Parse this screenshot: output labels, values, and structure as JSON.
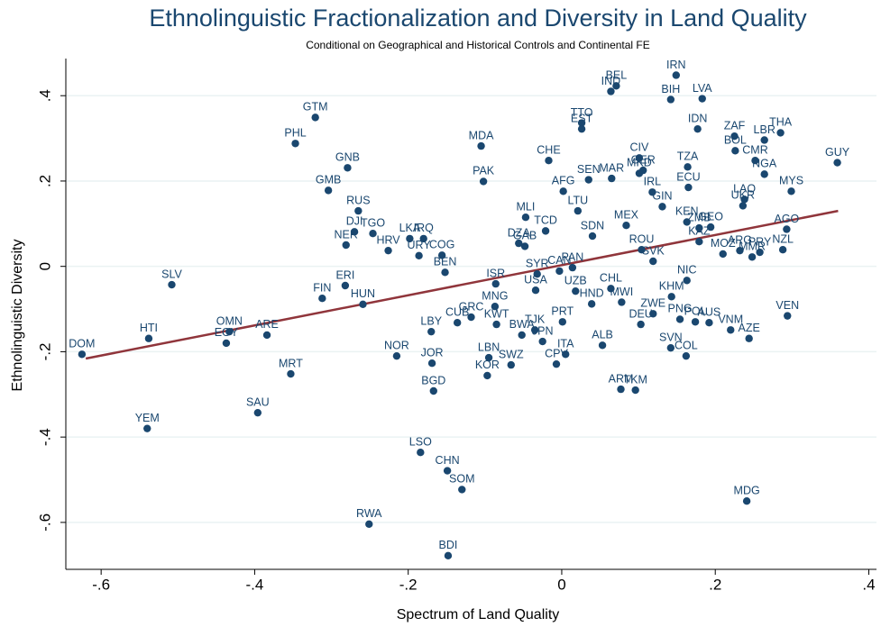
{
  "chart_data": {
    "type": "scatter",
    "title": "Ethnolinguistic Fractionalization and Diversity in Land Quality",
    "subtitle": "Conditional on Geographical and Historical Controls and Continental FE",
    "x_label": "Spectrum of Land Quality",
    "y_label": "Ethnolinguistic Diversity",
    "xlim": [
      -0.646,
      0.41
    ],
    "ylim": [
      -0.71,
      0.487
    ],
    "xticks": [
      {
        "value": -0.6,
        "label": "-.6"
      },
      {
        "value": -0.4,
        "label": "-.4"
      },
      {
        "value": -0.2,
        "label": "-.2"
      },
      0,
      {
        "value": 0.2,
        "label": ".2"
      },
      {
        "value": 0.4,
        "label": ".4"
      }
    ],
    "yticks": [
      {
        "value": -0.6,
        "label": "-.6"
      },
      {
        "value": -0.4,
        "label": "-.4"
      },
      {
        "value": -0.2,
        "label": "-.2"
      },
      0,
      {
        "value": 0.2,
        "label": ".2"
      },
      {
        "value": 0.4,
        "label": ".4"
      }
    ],
    "grid": true,
    "color": "#1a476f",
    "fit_color": "#90353b",
    "fit_line": {
      "x": [
        -0.62,
        0.36
      ],
      "y": [
        -0.216,
        0.13
      ]
    },
    "labels": [
      "DOM",
      "HTI",
      "YEM",
      "SLV",
      "OMN",
      "EGY",
      "ARE",
      "SAU",
      "MRT",
      "GTM",
      "PHL",
      "GMB",
      "GNB",
      "RUS",
      "DJI",
      "NER",
      "TGO",
      "HRV",
      "LKA",
      "URY",
      "IRQ",
      "COG",
      "BEN",
      "FIN",
      "ERI",
      "HUN",
      "NOR",
      "JOR",
      "BGD",
      "LBY",
      "CUB",
      "GRC",
      "KWT",
      "MNG",
      "ISR",
      "LBN",
      "KOR",
      "SWZ",
      "BWA",
      "TJK",
      "JPN",
      "ITA",
      "CPV",
      "LSO",
      "CHN",
      "SOM",
      "RWA",
      "BDI",
      "MDA",
      "PAK",
      "CHE",
      "MLI",
      "TCD",
      "DZA",
      "GAB",
      "TTO",
      "EST",
      "IND",
      "BEL",
      "IRN",
      "BIH",
      "LVA",
      "IDN",
      "ZAF",
      "BOL",
      "LBR",
      "THA",
      "CMR",
      "NGA",
      "MYS",
      "GUY",
      "LAO",
      "UKR",
      "AGO",
      "NZL",
      "PRY",
      "MMR",
      "ARG",
      "MOZ",
      "GEO",
      "KAZ",
      "ZMB",
      "CIV",
      "GER",
      "TZA",
      "ECU",
      "IRL",
      "MAR",
      "MKD",
      "AFG",
      "SEN",
      "LTU",
      "GIN",
      "CHL",
      "KEN",
      "MEX",
      "SDN",
      "ROU",
      "SVK",
      "PAN",
      "CAN",
      "UZB",
      "SYR",
      "USA",
      "NIC",
      "KHM",
      "HND",
      "MWI",
      "PRT",
      "ZWE",
      "DEU",
      "PNG",
      "AUS",
      "POL",
      "VNM",
      "AZE",
      "VEN",
      "SVN",
      "COL",
      "ALB",
      "ARM",
      "TKM",
      "MDG"
    ],
    "x": [
      -0.625,
      -0.538,
      -0.54,
      -0.508,
      -0.433,
      -0.437,
      -0.384,
      -0.396,
      -0.353,
      -0.321,
      -0.347,
      -0.304,
      -0.279,
      -0.265,
      -0.27,
      -0.281,
      -0.246,
      -0.226,
      -0.198,
      -0.186,
      -0.18,
      -0.156,
      -0.152,
      -0.312,
      -0.282,
      -0.259,
      -0.215,
      -0.169,
      -0.167,
      -0.17,
      -0.136,
      -0.118,
      -0.085,
      -0.087,
      -0.086,
      -0.095,
      -0.097,
      -0.066,
      -0.052,
      -0.035,
      -0.025,
      0.005,
      -0.007,
      -0.184,
      -0.149,
      -0.13,
      -0.251,
      -0.148,
      -0.105,
      -0.102,
      -0.017,
      -0.047,
      -0.021,
      -0.056,
      -0.048,
      0.026,
      0.026,
      0.064,
      0.071,
      0.149,
      0.142,
      0.183,
      0.177,
      0.225,
      0.226,
      0.264,
      0.285,
      0.252,
      0.264,
      0.299,
      0.359,
      0.238,
      0.236,
      0.293,
      0.288,
      0.258,
      0.248,
      0.232,
      0.21,
      0.194,
      0.179,
      0.179,
      0.101,
      0.106,
      0.164,
      0.165,
      0.118,
      0.065,
      0.101,
      0.002,
      0.035,
      0.021,
      0.131,
      0.064,
      0.163,
      0.084,
      0.04,
      0.104,
      0.119,
      0.014,
      -0.003,
      0.018,
      -0.032,
      -0.034,
      0.163,
      0.143,
      0.039,
      0.078,
      0.001,
      0.119,
      0.103,
      0.154,
      0.192,
      0.174,
      0.22,
      0.244,
      0.294,
      0.142,
      0.162,
      0.053,
      0.077,
      0.096,
      0.241
    ],
    "y": [
      -0.206,
      -0.169,
      -0.38,
      -0.043,
      -0.153,
      -0.18,
      -0.161,
      -0.343,
      -0.252,
      0.349,
      0.288,
      0.178,
      0.231,
      0.13,
      0.081,
      0.05,
      0.077,
      0.037,
      0.065,
      0.025,
      0.065,
      0.026,
      -0.014,
      -0.075,
      -0.045,
      -0.089,
      -0.21,
      -0.227,
      -0.292,
      -0.153,
      -0.132,
      -0.119,
      -0.136,
      -0.094,
      -0.041,
      -0.214,
      -0.256,
      -0.231,
      -0.161,
      -0.149,
      -0.176,
      -0.206,
      -0.229,
      -0.436,
      -0.479,
      -0.523,
      -0.604,
      -0.678,
      0.282,
      0.199,
      0.248,
      0.115,
      0.083,
      0.054,
      0.047,
      0.336,
      0.322,
      0.41,
      0.423,
      0.448,
      0.391,
      0.393,
      0.322,
      0.305,
      0.271,
      0.296,
      0.313,
      0.248,
      0.216,
      0.176,
      0.243,
      0.157,
      0.142,
      0.087,
      0.039,
      0.033,
      0.022,
      0.037,
      0.029,
      0.092,
      0.058,
      0.09,
      0.254,
      0.225,
      0.233,
      0.185,
      0.174,
      0.206,
      0.218,
      0.176,
      0.203,
      0.13,
      0.14,
      -0.052,
      0.104,
      0.096,
      0.071,
      0.039,
      0.012,
      -0.003,
      -0.011,
      -0.058,
      -0.018,
      -0.056,
      -0.033,
      -0.071,
      -0.088,
      -0.084,
      -0.13,
      -0.111,
      -0.136,
      -0.124,
      -0.132,
      -0.13,
      -0.149,
      -0.169,
      -0.116,
      -0.191,
      -0.21,
      -0.185,
      -0.288,
      -0.29,
      -0.55
    ]
  }
}
